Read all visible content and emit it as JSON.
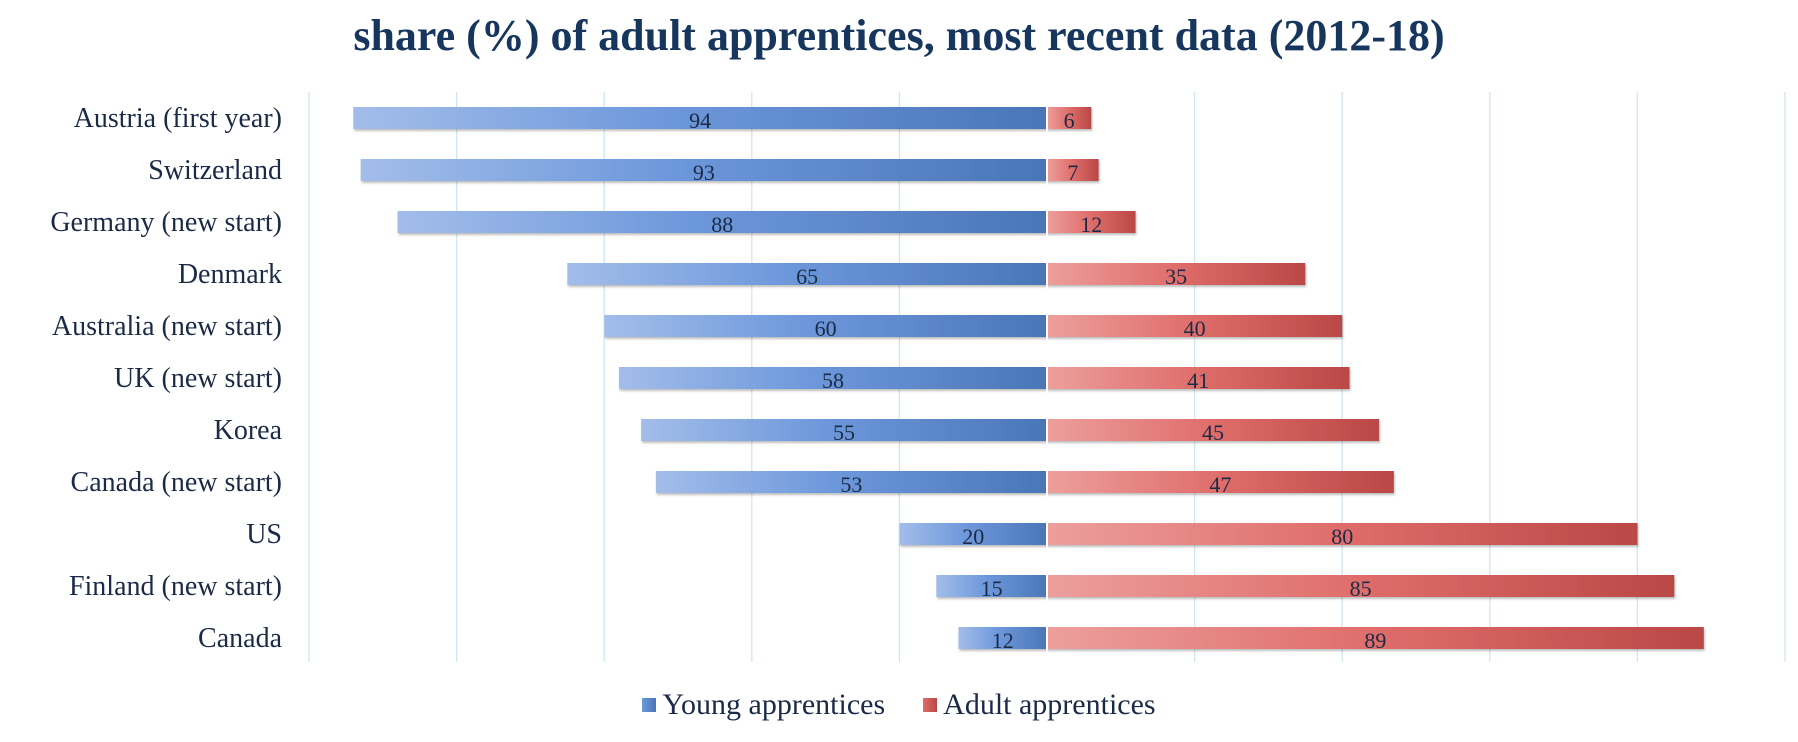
{
  "chart_data": {
    "type": "bar",
    "orientation": "horizontal-diverging",
    "title": "share (%) of adult apprentices, most recent data (2012-18)",
    "categories": [
      "Austria (first year)",
      "Switzerland",
      "Germany (new start)",
      "Denmark",
      "Australia (new start)",
      "UK (new start)",
      "Korea",
      "Canada (new start)",
      "US",
      "Finland (new start)",
      "Canada"
    ],
    "series": [
      {
        "name": "Young apprentices",
        "values": [
          94,
          93,
          88,
          65,
          60,
          58,
          55,
          53,
          20,
          15,
          12
        ],
        "color": "#4f7fc4"
      },
      {
        "name": "Adult apprentices",
        "values": [
          6,
          7,
          12,
          35,
          40,
          41,
          45,
          47,
          80,
          85,
          89
        ],
        "color": "#c9504f"
      }
    ],
    "xlim": [
      -100,
      100
    ],
    "grid": true,
    "legend_position": "bottom"
  }
}
